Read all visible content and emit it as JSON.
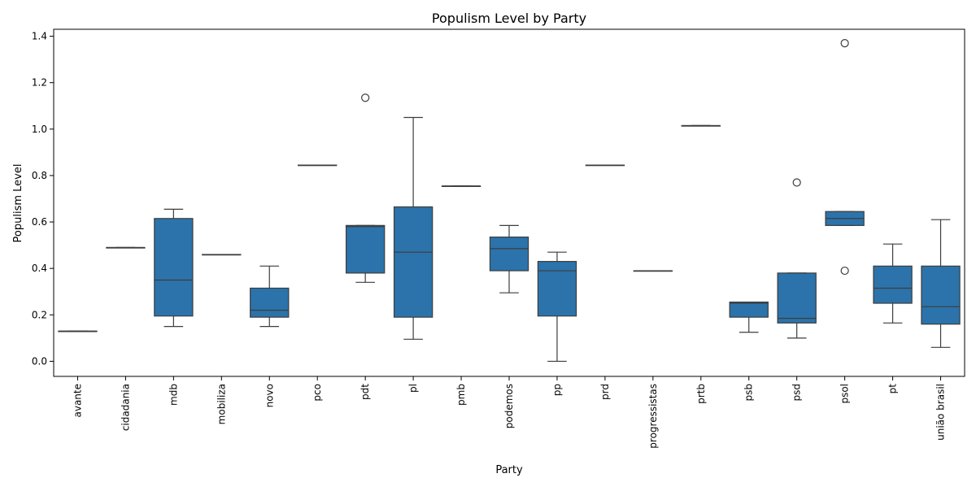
{
  "chart_data": {
    "type": "box",
    "title": "Populism Level by Party",
    "xlabel": "Party",
    "ylabel": "Populism Level",
    "ylim": [
      -0.065,
      1.43
    ],
    "yticks": [
      0.0,
      0.2,
      0.4,
      0.6,
      0.8,
      1.0,
      1.2,
      1.4
    ],
    "ytick_labels": [
      "0.0",
      "0.2",
      "0.4",
      "0.6",
      "0.8",
      "1.0",
      "1.2",
      "1.4"
    ],
    "grid": false,
    "box_color": "#2b73aa",
    "line_color": "#3d3d3d",
    "categories": [
      "avante",
      "cidadania",
      "mdb",
      "mobiliza",
      "novo",
      "pco",
      "pdt",
      "pl",
      "pmb",
      "podemos",
      "pp",
      "prd",
      "progressistas",
      "prtb",
      "psb",
      "psd",
      "psol",
      "pt",
      "união brasil"
    ],
    "boxes": [
      {
        "min": 0.13,
        "q1": 0.13,
        "median": 0.13,
        "q3": 0.13,
        "max": 0.13,
        "outliers": []
      },
      {
        "min": 0.49,
        "q1": 0.49,
        "median": 0.49,
        "q3": 0.49,
        "max": 0.49,
        "outliers": []
      },
      {
        "min": 0.15,
        "q1": 0.195,
        "median": 0.35,
        "q3": 0.615,
        "max": 0.655,
        "outliers": []
      },
      {
        "min": 0.46,
        "q1": 0.46,
        "median": 0.46,
        "q3": 0.46,
        "max": 0.46,
        "outliers": []
      },
      {
        "min": 0.15,
        "q1": 0.19,
        "median": 0.22,
        "q3": 0.315,
        "max": 0.41,
        "outliers": []
      },
      {
        "min": 0.845,
        "q1": 0.845,
        "median": 0.845,
        "q3": 0.845,
        "max": 0.845,
        "outliers": []
      },
      {
        "min": 0.34,
        "q1": 0.38,
        "median": 0.58,
        "q3": 0.585,
        "max": 0.585,
        "outliers": [
          1.135
        ]
      },
      {
        "min": 0.095,
        "q1": 0.19,
        "median": 0.47,
        "q3": 0.665,
        "max": 1.05,
        "outliers": []
      },
      {
        "min": 0.755,
        "q1": 0.755,
        "median": 0.755,
        "q3": 0.755,
        "max": 0.755,
        "outliers": []
      },
      {
        "min": 0.295,
        "q1": 0.39,
        "median": 0.485,
        "q3": 0.535,
        "max": 0.585,
        "outliers": []
      },
      {
        "min": 0.0,
        "q1": 0.195,
        "median": 0.39,
        "q3": 0.43,
        "max": 0.47,
        "outliers": []
      },
      {
        "min": 0.845,
        "q1": 0.845,
        "median": 0.845,
        "q3": 0.845,
        "max": 0.845,
        "outliers": []
      },
      {
        "min": 0.39,
        "q1": 0.39,
        "median": 0.39,
        "q3": 0.39,
        "max": 0.39,
        "outliers": []
      },
      {
        "min": 1.015,
        "q1": 1.015,
        "median": 1.015,
        "q3": 1.015,
        "max": 1.015,
        "outliers": []
      },
      {
        "min": 0.125,
        "q1": 0.19,
        "median": 0.25,
        "q3": 0.255,
        "max": 0.255,
        "outliers": []
      },
      {
        "min": 0.1,
        "q1": 0.165,
        "median": 0.185,
        "q3": 0.38,
        "max": 0.38,
        "outliers": [
          0.77
        ]
      },
      {
        "min": 0.585,
        "q1": 0.585,
        "median": 0.615,
        "q3": 0.645,
        "max": 0.645,
        "outliers": [
          0.39,
          1.37
        ]
      },
      {
        "min": 0.165,
        "q1": 0.25,
        "median": 0.315,
        "q3": 0.41,
        "max": 0.505,
        "outliers": []
      },
      {
        "min": 0.06,
        "q1": 0.16,
        "median": 0.235,
        "q3": 0.41,
        "max": 0.61,
        "outliers": []
      }
    ]
  }
}
